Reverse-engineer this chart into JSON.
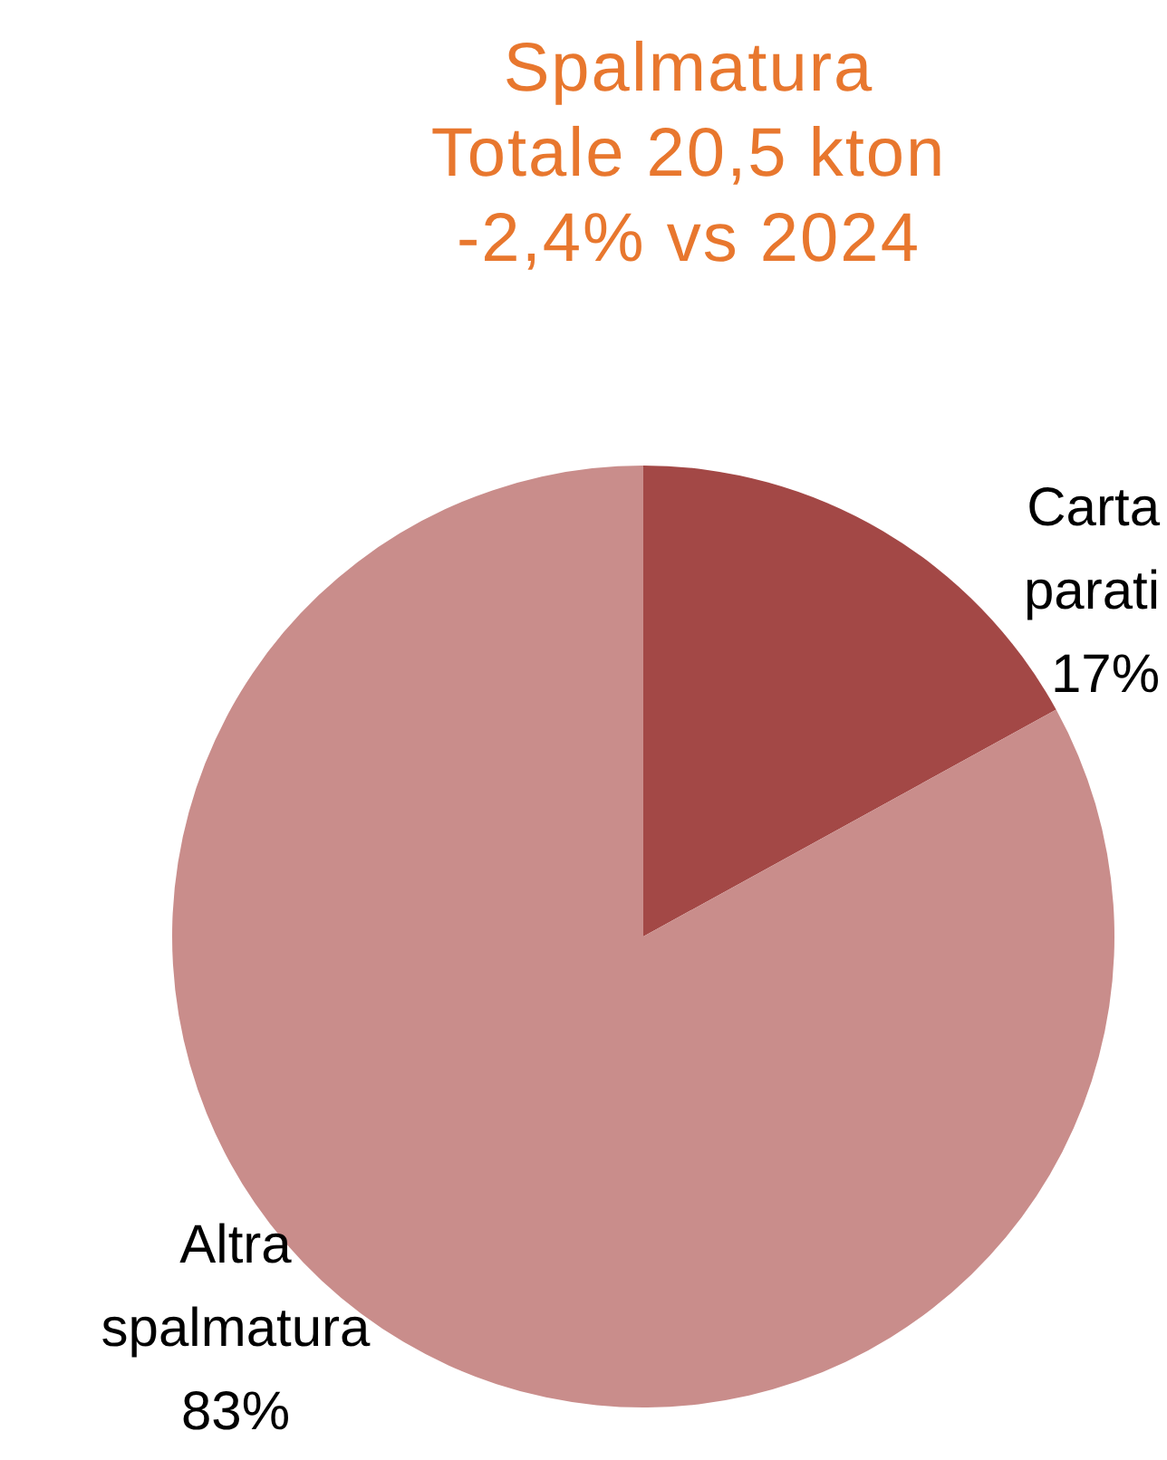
{
  "chart_data": {
    "type": "pie",
    "title": "Spalmatura\nTotale 20,5 kton\n-2,4% vs 2024",
    "categories": [
      "Carta parati",
      "Altra spalmatura"
    ],
    "values": [
      17,
      83
    ],
    "colors": [
      "#a34846",
      "#c98d8b"
    ],
    "value_labels": [
      "17%",
      "83%"
    ]
  }
}
